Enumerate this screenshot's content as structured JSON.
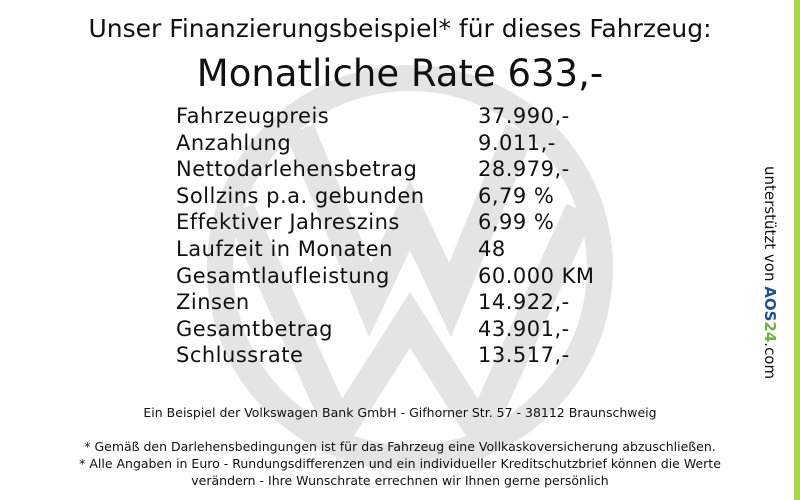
{
  "header": {
    "title": "Unser Finanzierungsbeispiel* für dieses Fahrzeug:",
    "rate": "Monatliche Rate 633,-"
  },
  "table": {
    "rows": [
      [
        "Fahrzeugpreis",
        "37.990,-"
      ],
      [
        "Anzahlung",
        "9.011,-"
      ],
      [
        "Nettodarlehensbetrag",
        "28.979,-"
      ],
      [
        "Sollzins p.a. gebunden",
        "6,79 %"
      ],
      [
        "Effektiver Jahreszins",
        "6,99 %"
      ],
      [
        "Laufzeit in Monaten",
        "48"
      ],
      [
        "Gesamtlaufleistung",
        "60.000 KM"
      ],
      [
        "Zinsen",
        "14.922,-"
      ],
      [
        "Gesamtbetrag",
        "43.901,-"
      ],
      [
        "Schlussrate",
        "13.517,-"
      ]
    ]
  },
  "footer": {
    "bank": "Ein Beispiel der Volkswagen Bank GmbH - Gifhorner Str. 57 - 38112 Braunschweig",
    "notes": [
      "* Gemäß den Darlehensbedingungen ist für das Fahrzeug eine Vollkaskoversicherung abzuschließen.",
      "* Alle Angaben in Euro - Rundungsdifferenzen und ein individueller Kreditschutzbrief können die Werte",
      "verändern - Ihre Wunschrate errechnen wir Ihnen gerne persönlich"
    ]
  },
  "side": {
    "prefix": "unterstützt von",
    "brand_a": "AOS",
    "brand_b": "24",
    "suffix": ".com"
  }
}
